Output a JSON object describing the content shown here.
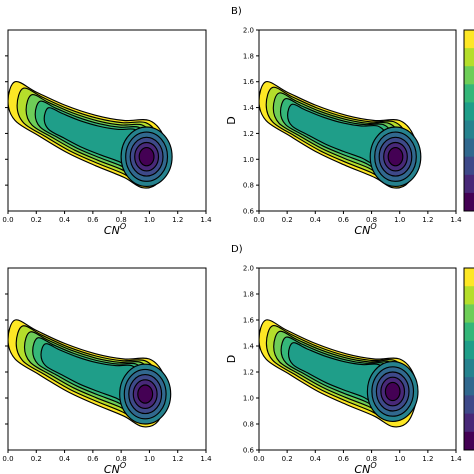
{
  "chart_data": [
    {
      "type": "contour",
      "panel_label": "",
      "xlabel": "CN",
      "xlabel_sup": "O",
      "ylabel": "",
      "xlim": [
        0.0,
        1.4
      ],
      "ylim": [
        0.6,
        2.0
      ],
      "xticks": [
        "0.0",
        "0.2",
        "0.4",
        "0.6",
        "0.8",
        "1.0",
        "1.2",
        "1.4"
      ],
      "yticks": [],
      "colormap": [
        "#fde725",
        "#b5de2b",
        "#6ece58",
        "#35b779",
        "#1f9e89",
        "#26828e",
        "#31688e",
        "#3e4989",
        "#482878",
        "#440154"
      ],
      "density_modes": [
        {
          "x": 0.98,
          "y": 1.02,
          "weight": 1.0
        },
        {
          "x": 0.55,
          "y": 1.2,
          "weight": 0.45
        },
        {
          "x": 0.15,
          "y": 1.42,
          "weight": 0.35
        }
      ]
    },
    {
      "type": "contour",
      "panel_label": "B)",
      "xlabel": "CN",
      "xlabel_sup": "O",
      "ylabel": "D",
      "xlim": [
        0.0,
        1.4
      ],
      "ylim": [
        0.6,
        2.0
      ],
      "xticks": [
        "0.0",
        "0.2",
        "0.4",
        "0.6",
        "0.8",
        "1.0",
        "1.2",
        "1.4"
      ],
      "yticks": [
        "0.6",
        "0.8",
        "1.0",
        "1.2",
        "1.4",
        "1.6",
        "1.8",
        "2.0"
      ],
      "colormap": [
        "#fde725",
        "#b5de2b",
        "#6ece58",
        "#35b779",
        "#1f9e89",
        "#26828e",
        "#31688e",
        "#3e4989",
        "#482878",
        "#440154"
      ],
      "density_modes": [
        {
          "x": 0.97,
          "y": 1.02,
          "weight": 1.0
        },
        {
          "x": 0.5,
          "y": 1.2,
          "weight": 0.85
        },
        {
          "x": 0.1,
          "y": 1.45,
          "weight": 0.75
        }
      ]
    },
    {
      "type": "contour",
      "panel_label": "",
      "xlabel": "CN",
      "xlabel_sup": "O",
      "ylabel": "",
      "xlim": [
        0.0,
        1.4
      ],
      "ylim": [
        0.6,
        2.0
      ],
      "xticks": [
        "0.0",
        "0.2",
        "0.4",
        "0.6",
        "0.8",
        "1.0",
        "1.2",
        "1.4"
      ],
      "yticks": [],
      "colormap": [
        "#fde725",
        "#b5de2b",
        "#6ece58",
        "#35b779",
        "#1f9e89",
        "#26828e",
        "#31688e",
        "#3e4989",
        "#482878",
        "#440154"
      ],
      "density_modes": [
        {
          "x": 0.97,
          "y": 1.03,
          "weight": 1.0
        },
        {
          "x": 0.55,
          "y": 1.22,
          "weight": 0.6
        },
        {
          "x": 0.12,
          "y": 1.45,
          "weight": 0.5
        }
      ]
    },
    {
      "type": "contour",
      "panel_label": "D)",
      "xlabel": "CN",
      "xlabel_sup": "O",
      "ylabel": "D",
      "xlim": [
        0.0,
        1.4
      ],
      "ylim": [
        0.6,
        2.0
      ],
      "xticks": [
        "0.0",
        "0.2",
        "0.4",
        "0.6",
        "0.8",
        "1.0",
        "1.2",
        "1.4"
      ],
      "yticks": [
        "0.6",
        "0.8",
        "1.0",
        "1.2",
        "1.4",
        "1.6",
        "1.8",
        "2.0"
      ],
      "colormap": [
        "#fde725",
        "#b5de2b",
        "#6ece58",
        "#35b779",
        "#1f9e89",
        "#26828e",
        "#31688e",
        "#3e4989",
        "#482878",
        "#440154"
      ],
      "density_modes": [
        {
          "x": 0.95,
          "y": 1.05,
          "weight": 1.0
        },
        {
          "x": 0.55,
          "y": 1.18,
          "weight": 0.95
        },
        {
          "x": 0.1,
          "y": 1.45,
          "weight": 0.7
        }
      ]
    }
  ]
}
